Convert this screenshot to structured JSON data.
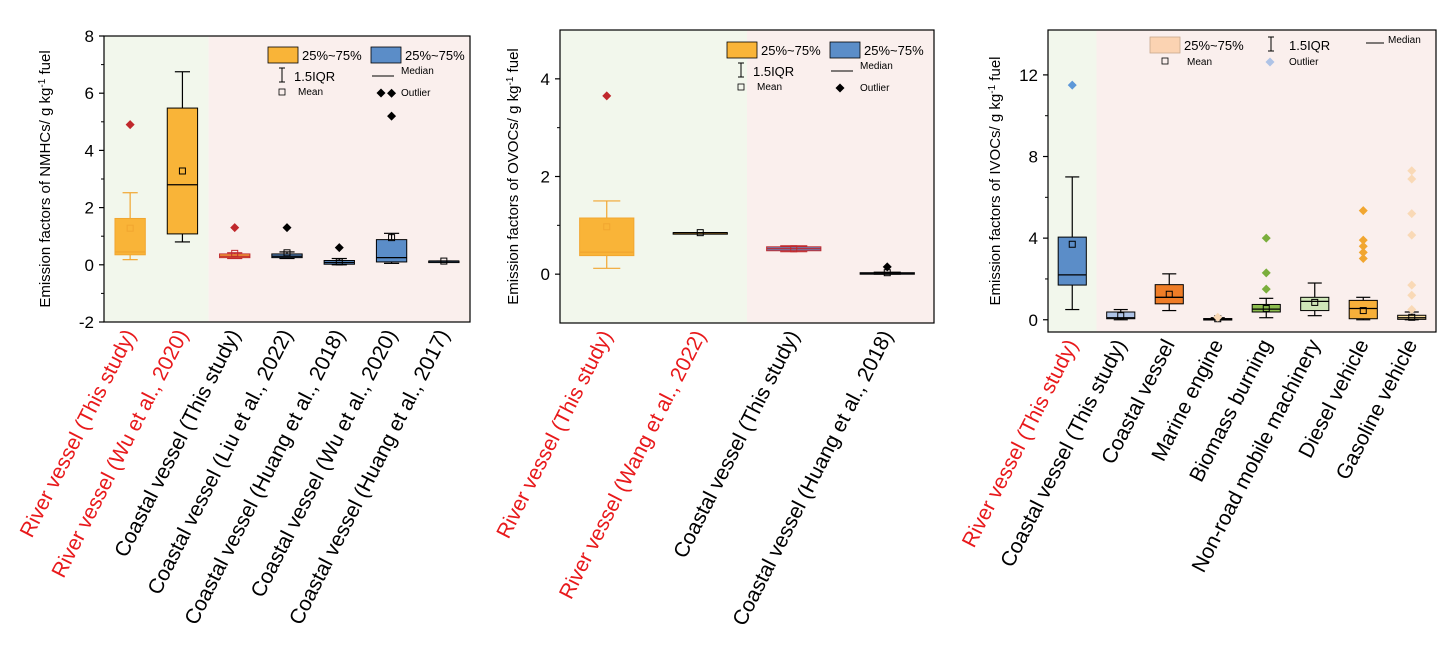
{
  "colors": {
    "river_bg": "#f2f7ec",
    "coastal_bg": "#faefed",
    "river_label": "#e8191b",
    "coastal_label": "#000000",
    "orange": "#f9b438",
    "blue": "#5b8dc8",
    "red_marker": "#c0282c",
    "black_marker": "#000000",
    "coastal_orange": "#ef7d27",
    "marine_gray": "#b0b0b0",
    "biomass_green": "#8dbd4f",
    "nonroad_green": "#cfe7b8",
    "diesel_orange": "#f7b03a",
    "gasoline_yellow": "#fde1a0",
    "light_blue": "#aec3e6",
    "peach": "#fbd3b2",
    "peach_outlier": "#f9d9b6",
    "blue_outlier": "#5d98d8",
    "orange_outlier": "#f1a630",
    "green_outlier": "#7aae3c"
  },
  "legend": {
    "box_label": "25%~75%",
    "whisker_label": "1.5IQR",
    "median_label": "Median",
    "mean_label": "Mean",
    "outlier_label": "Outlier"
  },
  "chart_data": [
    {
      "type": "box",
      "ylabel_main": "Emission factors of NMHCs/ g kg",
      "ylabel_sup": "-1",
      "ylabel_end": " fuel",
      "ylim": [
        -2,
        8
      ],
      "yticks": [
        "-2",
        "0",
        "2",
        "4",
        "6",
        "8"
      ],
      "ytick_values": [
        -2,
        0,
        2,
        4,
        6,
        8
      ],
      "shade_split_after": 2,
      "categories": [
        {
          "label": "River vessel (This study)",
          "color_key": "river_label",
          "box": {
            "q1": 0.35,
            "median": 0.45,
            "q3": 1.62,
            "wlo": 0.18,
            "whi": 2.52,
            "mean": 1.28,
            "outliers": [
              4.9
            ]
          },
          "fill_key": "orange",
          "line_key": "orange_outlier",
          "outlier_key": "red_marker"
        },
        {
          "label": "River vessel (Wu et al., 2020)",
          "color_key": "river_label",
          "box": {
            "q1": 1.08,
            "median": 2.8,
            "q3": 5.48,
            "wlo": 0.8,
            "whi": 6.75,
            "mean": 3.28,
            "outliers": []
          },
          "fill_key": "orange",
          "line_key": "black_marker",
          "outlier_key": "black_marker"
        },
        {
          "label": "Coastal vessel (This study)",
          "color_key": "coastal_label",
          "box": {
            "q1": 0.25,
            "median": 0.3,
            "q3": 0.38,
            "wlo": 0.22,
            "whi": 0.42,
            "mean": 0.4,
            "outliers": [
              1.3
            ]
          },
          "fill_key": "orange",
          "line_key": "red_marker",
          "outlier_key": "red_marker"
        },
        {
          "label": "Coastal vessel (Liu et al., 2022)",
          "color_key": "coastal_label",
          "box": {
            "q1": 0.25,
            "median": 0.3,
            "q3": 0.38,
            "wlo": 0.22,
            "whi": 0.45,
            "mean": 0.42,
            "outliers": [
              1.3
            ]
          },
          "fill_key": "blue",
          "line_key": "black_marker",
          "outlier_key": "black_marker"
        },
        {
          "label": "Coastal vessel (Huang et al., 2018)",
          "color_key": "coastal_label",
          "box": {
            "q1": 0.02,
            "median": 0.08,
            "q3": 0.15,
            "wlo": 0.0,
            "whi": 0.22,
            "mean": 0.1,
            "outliers": [
              0.6
            ]
          },
          "fill_key": "blue",
          "line_key": "black_marker",
          "outlier_key": "black_marker"
        },
        {
          "label": "Coastal vessel (Wu et al., 2020)",
          "color_key": "coastal_label",
          "box": {
            "q1": 0.1,
            "median": 0.25,
            "q3": 0.88,
            "wlo": 0.05,
            "whi": 1.1,
            "mean": 0.95,
            "outliers": [
              6.0,
              5.2
            ]
          },
          "fill_key": "blue",
          "line_key": "black_marker",
          "outlier_key": "black_marker"
        },
        {
          "label": "Coastal vessel (Huang et al., 2017)",
          "color_key": "coastal_label",
          "box": {
            "q1": 0.13,
            "median": 0.13,
            "q3": 0.13,
            "wlo": 0.13,
            "whi": 0.13,
            "mean": 0.13,
            "outliers": []
          },
          "fill_key": "blue",
          "line_key": "black_marker",
          "outlier_key": "black_marker"
        }
      ]
    },
    {
      "type": "box",
      "ylabel_main": "Emission factors of OVOCs/ g kg",
      "ylabel_sup": "-1",
      "ylabel_end": " fuel",
      "ylim": [
        -1,
        5
      ],
      "yticks": [
        "0",
        "2",
        "4"
      ],
      "ytick_values": [
        0,
        2,
        4
      ],
      "shade_split_after": 2,
      "categories": [
        {
          "label": "River vessel (This study)",
          "color_key": "river_label",
          "box": {
            "q1": 0.38,
            "median": 0.45,
            "q3": 1.15,
            "wlo": 0.12,
            "whi": 1.5,
            "mean": 0.97,
            "outliers": [
              3.65
            ]
          },
          "fill_key": "orange",
          "line_key": "orange_outlier",
          "outlier_key": "red_marker"
        },
        {
          "label": "River vessel (Wang et al., 2022)",
          "color_key": "river_label",
          "box": {
            "q1": 0.85,
            "median": 0.85,
            "q3": 0.85,
            "wlo": 0.85,
            "whi": 0.85,
            "mean": 0.85,
            "outliers": []
          },
          "fill_key": "orange",
          "line_key": "black_marker",
          "outlier_key": "black_marker"
        },
        {
          "label": "Coastal vessel (This study)",
          "color_key": "coastal_label",
          "box": {
            "q1": 0.48,
            "median": 0.52,
            "q3": 0.56,
            "wlo": 0.46,
            "whi": 0.58,
            "mean": 0.52,
            "outliers": []
          },
          "fill_key": "blue",
          "line_key": "red_marker",
          "outlier_key": "red_marker"
        },
        {
          "label": "Coastal vessel (Huang et al., 2018)",
          "color_key": "coastal_label",
          "box": {
            "q1": 0.01,
            "median": 0.02,
            "q3": 0.03,
            "wlo": 0.0,
            "whi": 0.04,
            "mean": 0.03,
            "outliers": [
              0.15
            ]
          },
          "fill_key": "blue",
          "line_key": "black_marker",
          "outlier_key": "black_marker"
        }
      ]
    },
    {
      "type": "box",
      "ylabel_main": "Emission factors of IVOCs/ g kg",
      "ylabel_sup": "-1",
      "ylabel_end": " fuel",
      "ylim": [
        -0.6,
        14.2
      ],
      "yticks": [
        "0",
        "4",
        "8",
        "12"
      ],
      "ytick_values": [
        0,
        4,
        8,
        12
      ],
      "shade_split_after": 1,
      "categories": [
        {
          "label": "River vessel (This study)",
          "color_key": "river_label",
          "box": {
            "q1": 1.7,
            "median": 2.2,
            "q3": 4.05,
            "wlo": 0.5,
            "whi": 7.0,
            "mean": 3.7,
            "outliers": [
              11.5
            ]
          },
          "fill_key": "blue",
          "line_key": "black_marker",
          "outlier_key": "blue_outlier"
        },
        {
          "label": "Coastal vessel (This study)",
          "color_key": "coastal_label",
          "box": {
            "q1": 0.05,
            "median": 0.1,
            "q3": 0.38,
            "wlo": 0.0,
            "whi": 0.5,
            "mean": 0.2,
            "outliers": []
          },
          "fill_key": "light_blue",
          "line_key": "black_marker",
          "outlier_key": "blue_outlier"
        },
        {
          "label": "Coastal vessel",
          "color_key": "coastal_label",
          "box": {
            "q1": 0.78,
            "median": 1.1,
            "q3": 1.72,
            "wlo": 0.45,
            "whi": 2.25,
            "mean": 1.25,
            "outliers": []
          },
          "fill_key": "coastal_orange",
          "line_key": "black_marker",
          "outlier_key": "coastal_orange"
        },
        {
          "label": "Marine engine",
          "color_key": "coastal_label",
          "box": {
            "q1": 0.0,
            "median": 0.02,
            "q3": 0.06,
            "wlo": 0.0,
            "whi": 0.1,
            "mean": 0.05,
            "outliers": [
              0.12
            ]
          },
          "fill_key": "marine_gray",
          "line_key": "black_marker",
          "outlier_key": "peach_outlier"
        },
        {
          "label": "Biomass burning",
          "color_key": "coastal_label",
          "box": {
            "q1": 0.38,
            "median": 0.52,
            "q3": 0.75,
            "wlo": 0.1,
            "whi": 1.05,
            "mean": 0.55,
            "outliers": [
              1.5,
              2.3,
              4.0
            ]
          },
          "fill_key": "biomass_green",
          "line_key": "black_marker",
          "outlier_key": "green_outlier"
        },
        {
          "label": "Non-road mobile machinery",
          "color_key": "coastal_label",
          "box": {
            "q1": 0.45,
            "median": 0.9,
            "q3": 1.1,
            "wlo": 0.2,
            "whi": 1.8,
            "mean": 0.85,
            "outliers": []
          },
          "fill_key": "nonroad_green",
          "line_key": "black_marker",
          "outlier_key": "green_outlier"
        },
        {
          "label": "Diesel vehicle",
          "color_key": "coastal_label",
          "box": {
            "q1": 0.05,
            "median": 0.55,
            "q3": 0.95,
            "wlo": 0.0,
            "whi": 1.1,
            "mean": 0.45,
            "outliers": [
              3.0,
              3.3,
              3.6,
              3.9,
              5.35
            ]
          },
          "fill_key": "diesel_orange",
          "line_key": "black_marker",
          "outlier_key": "orange_outlier"
        },
        {
          "label": "Gasoline vehicle",
          "color_key": "coastal_label",
          "box": {
            "q1": 0.02,
            "median": 0.1,
            "q3": 0.22,
            "wlo": 0.0,
            "whi": 0.38,
            "mean": 0.12,
            "outliers": [
              0.5,
              1.2,
              1.7,
              4.15,
              5.2,
              6.9,
              7.3
            ]
          },
          "fill_key": "gasoline_yellow",
          "line_key": "black_marker",
          "outlier_key": "peach_outlier"
        }
      ]
    }
  ]
}
